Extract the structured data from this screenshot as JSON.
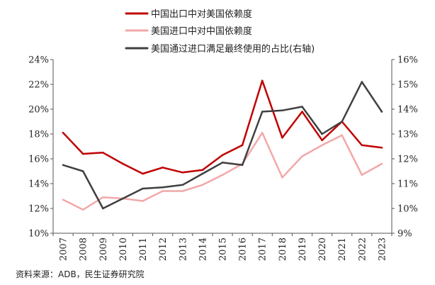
{
  "chart_data": {
    "type": "line",
    "categories": [
      "2007",
      "2008",
      "2009",
      "2010",
      "2011",
      "2012",
      "2013",
      "2014",
      "2015",
      "2016",
      "2017",
      "2018",
      "2019",
      "2020",
      "2021",
      "2022",
      "2023"
    ],
    "left_axis": {
      "min": 10,
      "max": 24,
      "step": 2,
      "ticks": [
        "10%",
        "12%",
        "14%",
        "16%",
        "18%",
        "20%",
        "22%",
        "24%"
      ]
    },
    "right_axis": {
      "min": 9,
      "max": 16,
      "step": 1,
      "ticks": [
        "9%",
        "10%",
        "11%",
        "12%",
        "13%",
        "14%",
        "15%",
        "16%"
      ]
    },
    "series": [
      {
        "name": "中国出口中对美国依赖度",
        "axis": "left",
        "color": "#C00000",
        "values": [
          18.1,
          16.4,
          16.5,
          15.6,
          14.8,
          15.3,
          14.9,
          15.1,
          16.3,
          17.1,
          22.3,
          17.7,
          19.8,
          17.5,
          19.0,
          17.1,
          16.9
        ]
      },
      {
        "name": "美国进口中对中国依赖度",
        "axis": "left",
        "color": "#F2A8A8",
        "values": [
          12.7,
          11.9,
          12.9,
          12.8,
          12.6,
          13.4,
          13.4,
          13.9,
          14.7,
          15.6,
          18.1,
          14.5,
          16.2,
          17.1,
          17.9,
          14.7,
          15.6
        ]
      },
      {
        "name": "美国通过进口满足最终使用的占比(右轴)",
        "axis": "right",
        "color": "#404040",
        "values": [
          11.75,
          11.5,
          10.0,
          10.4,
          10.8,
          10.85,
          10.95,
          11.4,
          11.85,
          11.75,
          13.9,
          13.95,
          14.1,
          13.0,
          13.5,
          15.1,
          13.9
        ]
      }
    ]
  },
  "source": "资料来源：ADB，民生证券研究院"
}
